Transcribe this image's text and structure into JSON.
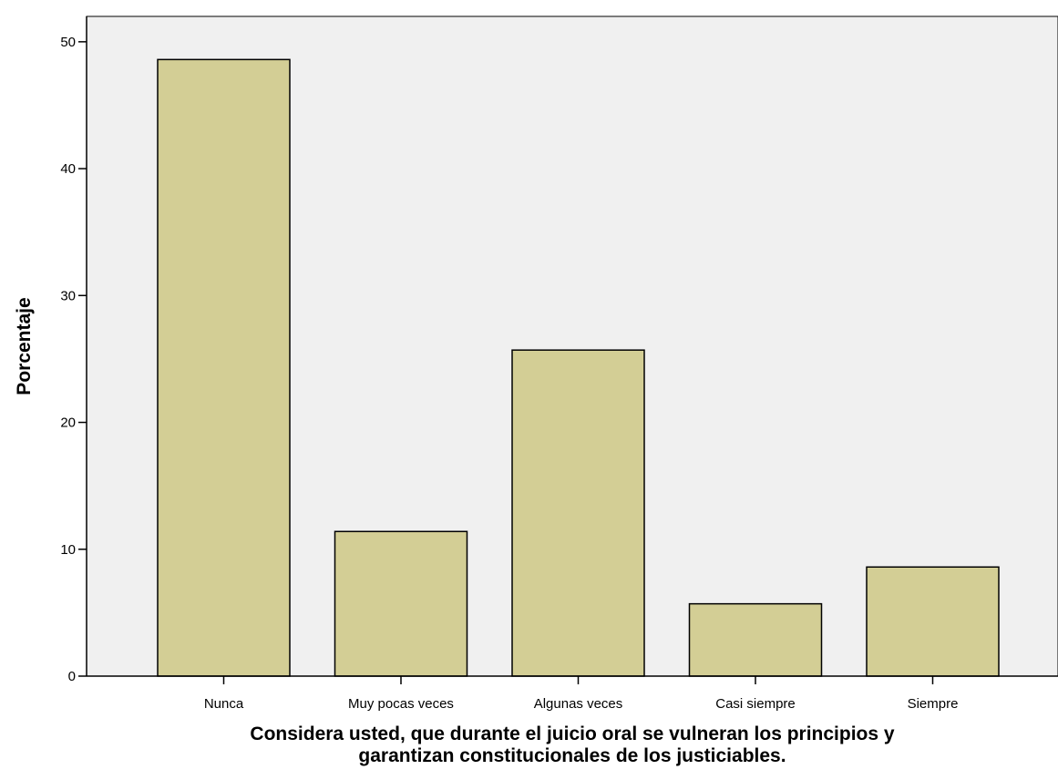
{
  "chart_data": {
    "type": "bar",
    "title": "",
    "categories": [
      "Nunca",
      "Muy pocas veces",
      "Algunas veces",
      "Casi siempre",
      "Siempre"
    ],
    "values": [
      48.6,
      11.4,
      25.7,
      5.7,
      8.6
    ],
    "ylabel": "Porcentaje",
    "xlabel_lines": [
      "Considera usted, que durante el juicio oral se vulneran los principios y",
      "garantizan constitucionales de los justiciables."
    ],
    "ylim": [
      0,
      52
    ],
    "yticks": [
      0,
      10,
      20,
      30,
      40,
      50
    ],
    "grid": false,
    "legend": "none",
    "colors": {
      "bar_fill": "#D3CE95",
      "bar_stroke": "#000000",
      "plot_background": "#F0F0F0",
      "axis": "#000000"
    }
  }
}
